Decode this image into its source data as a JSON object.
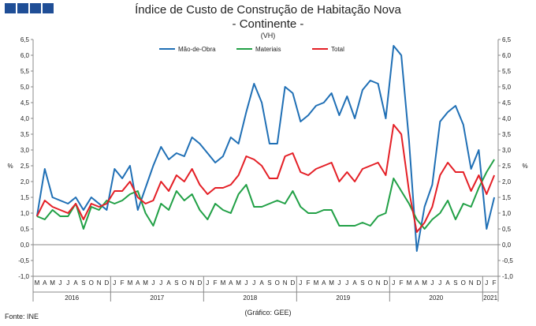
{
  "header": {
    "title": "Índice de Custo de Construção de Habitação Nova",
    "subtitle": "- Continente -",
    "unit": "(VH)"
  },
  "footer": {
    "source": "Fonte: INE",
    "credit": "(Gráfico: GEE)"
  },
  "chart_data": {
    "type": "line",
    "title": "Índice de Custo de Construção de Habitação Nova",
    "subtitle": "- Continente -",
    "ylabel": "%",
    "ylabel_right": "%",
    "ylim": [
      -1.0,
      6.5
    ],
    "yticks": [
      "-1,0",
      "-0,5",
      "0,0",
      "0,5",
      "1,0",
      "1,5",
      "2,0",
      "2,5",
      "3,0",
      "3,5",
      "4,0",
      "4,5",
      "5,0",
      "5,5",
      "6,0",
      "6,5"
    ],
    "grid": false,
    "legend": "top-center",
    "month_labels": [
      "M",
      "A",
      "M",
      "J",
      "J",
      "A",
      "S",
      "O",
      "N",
      "D",
      "J",
      "F",
      "M",
      "A",
      "M",
      "J",
      "J",
      "A",
      "S",
      "O",
      "N",
      "D",
      "J",
      "F",
      "M",
      "A",
      "M",
      "J",
      "J",
      "A",
      "S",
      "O",
      "N",
      "D",
      "J",
      "F",
      "M",
      "A",
      "M",
      "J",
      "J",
      "A",
      "S",
      "O",
      "N",
      "D",
      "J",
      "F",
      "M",
      "A",
      "M",
      "J",
      "J",
      "A",
      "S",
      "O",
      "N",
      "D",
      "J",
      "F"
    ],
    "years": [
      {
        "label": "2016",
        "start": 0,
        "count": 10
      },
      {
        "label": "2017",
        "start": 10,
        "count": 12
      },
      {
        "label": "2018",
        "start": 22,
        "count": 12
      },
      {
        "label": "2019",
        "start": 34,
        "count": 12
      },
      {
        "label": "2020",
        "start": 46,
        "count": 12
      },
      {
        "label": "2021",
        "start": 58,
        "count": 2
      }
    ],
    "series": [
      {
        "name": "Mão-de-Obra",
        "color": "#1f6fb5",
        "values": [
          0.9,
          2.4,
          1.5,
          1.4,
          1.3,
          1.5,
          1.1,
          1.5,
          1.3,
          1.1,
          2.4,
          2.1,
          2.5,
          1.1,
          1.8,
          2.5,
          3.1,
          2.7,
          2.9,
          2.8,
          3.4,
          3.2,
          2.9,
          2.6,
          2.8,
          3.4,
          3.2,
          4.2,
          5.1,
          4.5,
          3.2,
          3.2,
          5.0,
          4.8,
          3.9,
          4.1,
          4.4,
          4.5,
          4.8,
          4.1,
          4.7,
          4.0,
          4.9,
          5.2,
          5.1,
          4.0,
          6.3,
          6.0,
          3.3,
          -0.2,
          1.2,
          1.9,
          3.9,
          4.2,
          4.4,
          3.8,
          2.4,
          3.0,
          0.5,
          1.5
        ]
      },
      {
        "name": "Materiais",
        "color": "#21a046",
        "values": [
          0.9,
          0.8,
          1.1,
          0.9,
          0.9,
          1.3,
          0.5,
          1.2,
          1.1,
          1.4,
          1.3,
          1.4,
          1.6,
          1.7,
          1.0,
          0.6,
          1.3,
          1.1,
          1.7,
          1.4,
          1.6,
          1.1,
          0.8,
          1.3,
          1.1,
          1.0,
          1.6,
          1.9,
          1.2,
          1.2,
          1.3,
          1.4,
          1.3,
          1.7,
          1.2,
          1.0,
          1.0,
          1.1,
          1.1,
          0.6,
          0.6,
          0.6,
          0.7,
          0.6,
          0.9,
          1.0,
          2.1,
          1.7,
          1.3,
          0.8,
          0.5,
          0.8,
          1.0,
          1.4,
          0.8,
          1.3,
          1.2,
          1.8,
          2.3,
          2.7
        ]
      },
      {
        "name": "Total",
        "color": "#e41f26",
        "values": [
          0.9,
          1.4,
          1.2,
          1.1,
          1.0,
          1.3,
          0.8,
          1.3,
          1.2,
          1.3,
          1.7,
          1.7,
          2.0,
          1.5,
          1.3,
          1.4,
          2.0,
          1.7,
          2.2,
          2.0,
          2.4,
          1.9,
          1.6,
          1.8,
          1.8,
          1.9,
          2.2,
          2.8,
          2.7,
          2.5,
          2.1,
          2.1,
          2.8,
          2.9,
          2.3,
          2.2,
          2.4,
          2.5,
          2.6,
          2.0,
          2.3,
          2.0,
          2.4,
          2.5,
          2.6,
          2.2,
          3.8,
          3.5,
          1.7,
          0.4,
          0.7,
          1.2,
          2.2,
          2.6,
          2.3,
          2.3,
          1.7,
          2.2,
          1.6,
          2.2
        ]
      }
    ]
  }
}
